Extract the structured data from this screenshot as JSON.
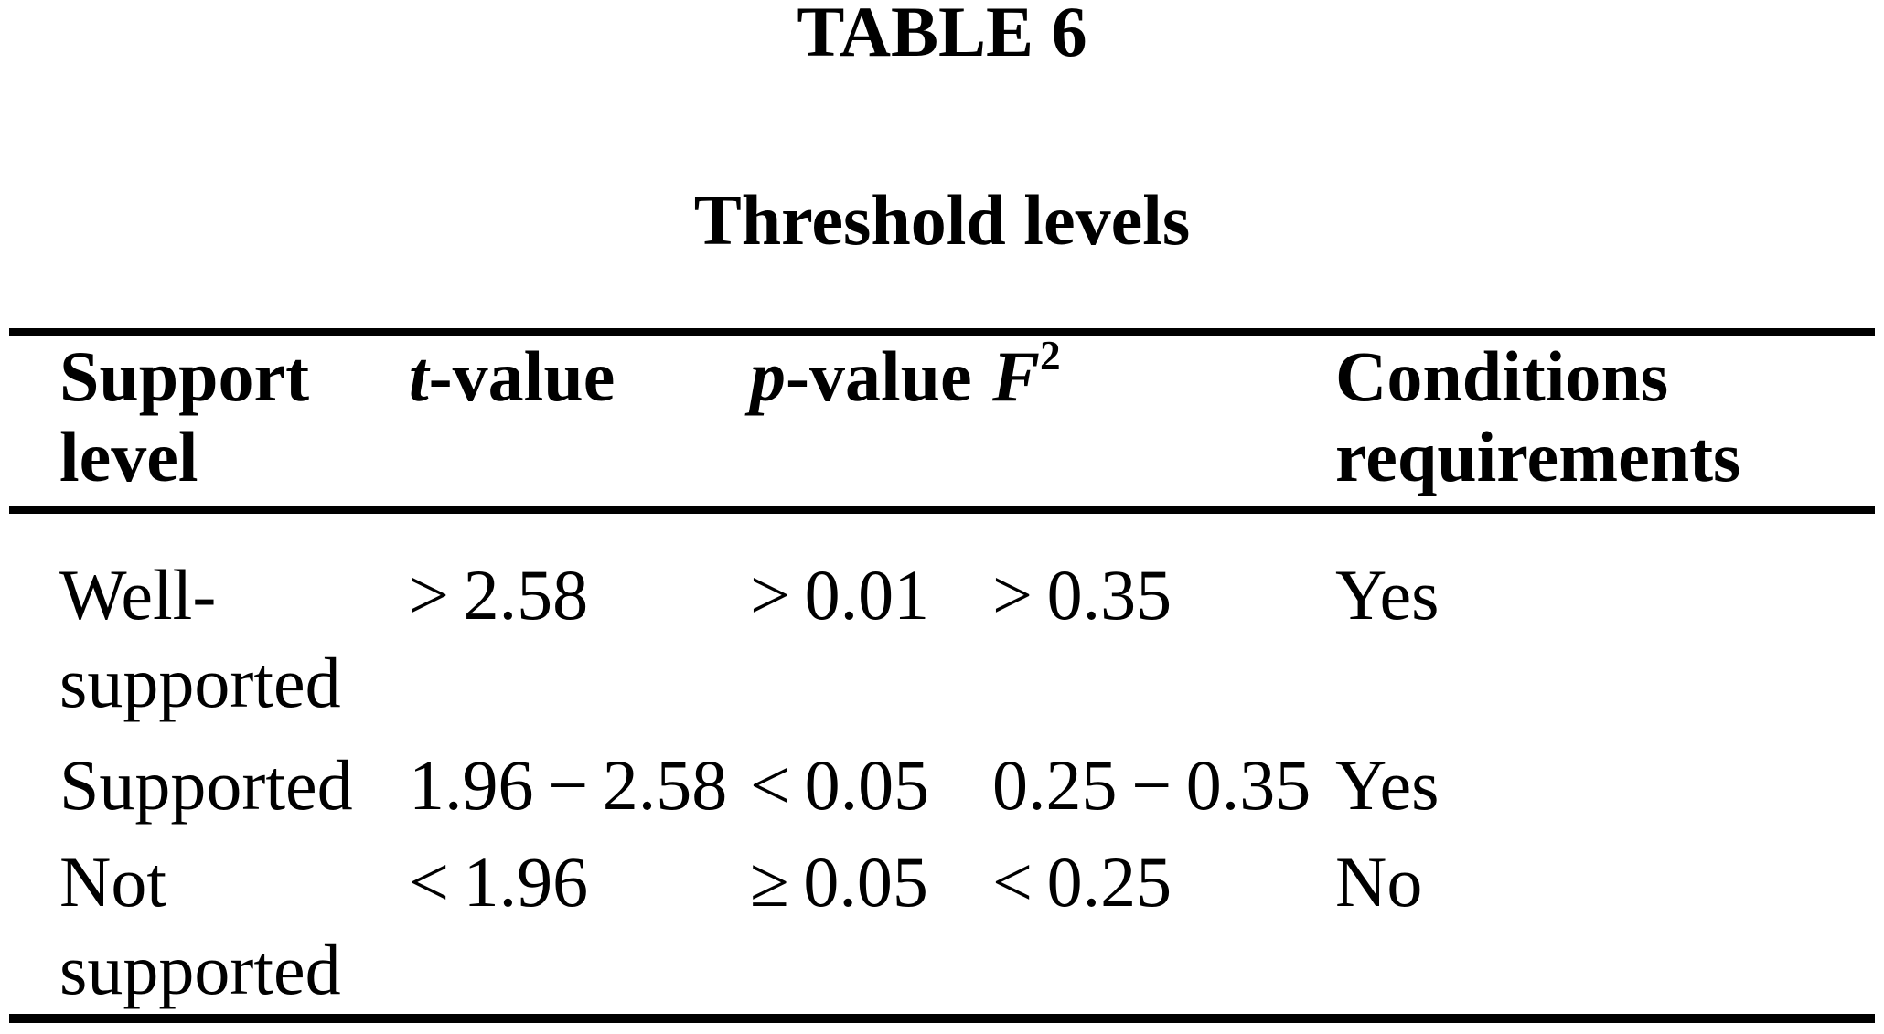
{
  "table": {
    "label": "TABLE 6",
    "caption": "Threshold levels",
    "columns": {
      "support": {
        "line1": "Support",
        "line2": "level"
      },
      "t": {
        "symbol": "t",
        "suffix": "-value"
      },
      "p": {
        "symbol": "p",
        "suffix": "-value"
      },
      "f": {
        "symbol": "F",
        "superscript": "2"
      },
      "conditions": {
        "line1": "Conditions",
        "line2": "requirements"
      }
    },
    "rows": [
      {
        "support_line1": "Well-",
        "support_line2": "supported",
        "t_value": "> 2.58",
        "p_value": "> 0.01",
        "f_squared": "> 0.35",
        "conditions": "Yes"
      },
      {
        "support_line1": "Supported",
        "t_value": "1.96 − 2.58",
        "p_value": "< 0.05",
        "f_squared": "0.25 − 0.35",
        "conditions": "Yes"
      },
      {
        "support_line1": "Not",
        "support_line2": "supported",
        "t_value": "< 1.96",
        "p_value": "≥ 0.05",
        "f_squared": "< 0.25",
        "conditions": "No"
      }
    ]
  }
}
